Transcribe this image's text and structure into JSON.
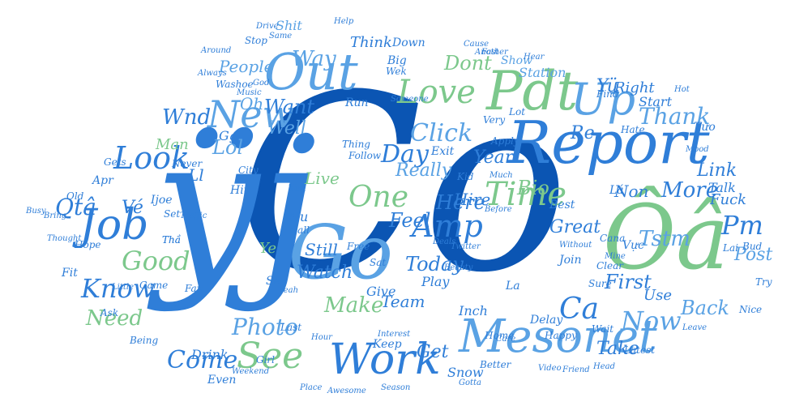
{
  "colors": {
    "background": "#ffffff",
    "navy": "#0b55b3",
    "blue": "#2f7ed8",
    "sky": "#5aa2e4",
    "green": "#7cc88c",
    "pale": "#b9d4ec",
    "palegreen": "#cde6cd"
  },
  "words": [
    {
      "text": "Co",
      "color": "navy"
    },
    {
      "text": "ÿj",
      "color": "blue"
    },
    {
      "text": "Go",
      "color": "sky"
    },
    {
      "text": "Ôâ",
      "color": "green"
    },
    {
      "text": "Report",
      "color": "blue"
    },
    {
      "text": "Out",
      "color": "sky"
    },
    {
      "text": "Pdt",
      "color": "green"
    },
    {
      "text": "Up",
      "color": "sky"
    },
    {
      "text": "Mesonet",
      "color": "sky"
    },
    {
      "text": "Work",
      "color": "blue"
    },
    {
      "text": "Job",
      "color": "blue"
    },
    {
      "text": "Love",
      "color": "green"
    },
    {
      "text": "See",
      "color": "green"
    },
    {
      "text": "Time",
      "color": "green"
    },
    {
      "text": "New",
      "color": "sky"
    },
    {
      "text": "Look",
      "color": "blue"
    },
    {
      "text": "Amp",
      "color": "blue"
    },
    {
      "text": "One",
      "color": "green"
    },
    {
      "text": "Click",
      "color": "sky"
    },
    {
      "text": "Pm",
      "color": "blue"
    },
    {
      "text": "Know",
      "color": "blue"
    },
    {
      "text": "Now",
      "color": "sky"
    },
    {
      "text": "Ca",
      "color": "blue"
    },
    {
      "text": "Good",
      "color": "green"
    },
    {
      "text": "Thank",
      "color": "sky"
    },
    {
      "text": "Come",
      "color": "blue"
    },
    {
      "text": "Need",
      "color": "green"
    },
    {
      "text": "Way",
      "color": "sky"
    },
    {
      "text": "Day",
      "color": "blue"
    },
    {
      "text": "Wnd",
      "color": "blue"
    },
    {
      "text": "Want",
      "color": "blue"
    },
    {
      "text": "People",
      "color": "sky"
    },
    {
      "text": "Dont",
      "color": "green"
    },
    {
      "text": "Lol",
      "color": "sky"
    },
    {
      "text": "Watch",
      "color": "blue"
    },
    {
      "text": "Today",
      "color": "blue"
    },
    {
      "text": "Make",
      "color": "green"
    },
    {
      "text": "Post",
      "color": "sky"
    },
    {
      "text": "Photo",
      "color": "sky"
    },
    {
      "text": "Take",
      "color": "blue"
    },
    {
      "text": "Back",
      "color": "sky"
    },
    {
      "text": "Get",
      "color": "blue"
    },
    {
      "text": "Feel",
      "color": "blue"
    },
    {
      "text": "Here",
      "color": "blue"
    },
    {
      "text": "Still",
      "color": "blue"
    },
    {
      "text": "Great",
      "color": "blue"
    },
    {
      "text": "Link",
      "color": "blue"
    },
    {
      "text": "More",
      "color": "blue"
    },
    {
      "text": "First",
      "color": "blue"
    },
    {
      "text": "Tstm",
      "color": "sky"
    },
    {
      "text": "Bio",
      "color": "green"
    },
    {
      "text": "Year",
      "color": "blue"
    },
    {
      "text": "Hire",
      "color": "blue"
    },
    {
      "text": "Really",
      "color": "sky"
    },
    {
      "text": "Live",
      "color": "green"
    },
    {
      "text": "Team",
      "color": "blue"
    },
    {
      "text": "Well",
      "color": "sky"
    },
    {
      "text": "Man",
      "color": "green"
    },
    {
      "text": "Oh",
      "color": "sky"
    },
    {
      "text": "Ye",
      "color": "green"
    },
    {
      "text": "Right",
      "color": "blue"
    },
    {
      "text": "Station",
      "color": "sky"
    },
    {
      "text": "Start",
      "color": "blue"
    },
    {
      "text": "Think",
      "color": "blue"
    },
    {
      "text": "Shit",
      "color": "sky"
    },
    {
      "text": "Show",
      "color": "sky"
    },
    {
      "text": "Use",
      "color": "blue"
    },
    {
      "text": "Non",
      "color": "blue"
    },
    {
      "text": "Re",
      "color": "blue"
    },
    {
      "text": "Talk",
      "color": "blue"
    },
    {
      "text": "Fuck",
      "color": "blue"
    },
    {
      "text": "Drink",
      "color": "blue"
    },
    {
      "text": "Keep",
      "color": "blue"
    },
    {
      "text": "Snow",
      "color": "blue"
    },
    {
      "text": "Play",
      "color": "blue"
    },
    {
      "text": "Give",
      "color": "blue"
    },
    {
      "text": "Nu",
      "color": "blue"
    },
    {
      "text": "Call",
      "color": "blue"
    },
    {
      "text": "Tell",
      "color": "blue"
    },
    {
      "text": "Hit",
      "color": "blue"
    },
    {
      "text": "City",
      "color": "blue"
    },
    {
      "text": "Never",
      "color": "blue"
    },
    {
      "text": "Old",
      "color": "blue"
    },
    {
      "text": "Apr",
      "color": "blue"
    },
    {
      "text": "Gets",
      "color": "blue"
    },
    {
      "text": "Stop",
      "color": "blue"
    },
    {
      "text": "Same",
      "color": "blue"
    },
    {
      "text": "Big",
      "color": "blue"
    },
    {
      "text": "Down",
      "color": "blue"
    },
    {
      "text": "Help",
      "color": "blue"
    },
    {
      "text": "Wek",
      "color": "blue"
    },
    {
      "text": "Best",
      "color": "blue"
    },
    {
      "text": "Last",
      "color": "blue"
    },
    {
      "text": "Better",
      "color": "blue"
    },
    {
      "text": "Find",
      "color": "blue"
    },
    {
      "text": "Hate",
      "color": "blue"
    },
    {
      "text": "Nice",
      "color": "blue"
    },
    {
      "text": "Try",
      "color": "blue"
    },
    {
      "text": "Fan",
      "color": "blue"
    },
    {
      "text": "Ask",
      "color": "blue"
    },
    {
      "text": "Even",
      "color": "blue"
    },
    {
      "text": "Girl",
      "color": "blue"
    },
    {
      "text": "Being",
      "color": "blue"
    },
    {
      "text": "Video",
      "color": "blue"
    },
    {
      "text": "Friend",
      "color": "blue"
    },
    {
      "text": "Head",
      "color": "blue"
    },
    {
      "text": "Latest",
      "color": "blue"
    },
    {
      "text": "Wait",
      "color": "blue"
    },
    {
      "text": "Leave",
      "color": "blue"
    },
    {
      "text": "Place",
      "color": "blue"
    },
    {
      "text": "Season",
      "color": "blue"
    },
    {
      "text": "Game",
      "color": "blue"
    },
    {
      "text": "Little",
      "color": "blue"
    },
    {
      "text": "Fit",
      "color": "blue"
    },
    {
      "text": "Hope",
      "color": "blue"
    },
    {
      "text": "Traffic",
      "color": "blue"
    },
    {
      "text": "Very",
      "color": "blue"
    },
    {
      "text": "Lot",
      "color": "blue"
    },
    {
      "text": "Apply",
      "color": "blue"
    },
    {
      "text": "Exit",
      "color": "blue"
    },
    {
      "text": "Follow",
      "color": "blue"
    },
    {
      "text": "Thing",
      "color": "blue"
    },
    {
      "text": "Free",
      "color": "blue"
    },
    {
      "text": "Without",
      "color": "blue"
    },
    {
      "text": "Join",
      "color": "blue"
    },
    {
      "text": "Clear",
      "color": "blue"
    },
    {
      "text": "Sure",
      "color": "blue"
    },
    {
      "text": "Inch",
      "color": "blue"
    },
    {
      "text": "Delay",
      "color": "blue"
    },
    {
      "text": "Happy",
      "color": "blue"
    },
    {
      "text": "Care",
      "color": "blue"
    },
    {
      "text": "Home",
      "color": "blue"
    },
    {
      "text": "Cana",
      "color": "blue"
    },
    {
      "text": "Mine",
      "color": "blue"
    },
    {
      "text": "Twitter",
      "color": "blue"
    },
    {
      "text": "Beauty",
      "color": "blue"
    },
    {
      "text": "Deals",
      "color": "blue"
    },
    {
      "text": "Kid",
      "color": "blue"
    },
    {
      "text": "Much",
      "color": "blue"
    },
    {
      "text": "Before",
      "color": "blue"
    },
    {
      "text": "Cause",
      "color": "blue"
    },
    {
      "text": "Another",
      "color": "blue"
    },
    {
      "text": "Drive",
      "color": "blue"
    },
    {
      "text": "Washoe",
      "color": "blue"
    },
    {
      "text": "Hear",
      "color": "blue"
    },
    {
      "text": "Run",
      "color": "blue"
    },
    {
      "text": "Someone",
      "color": "blue"
    },
    {
      "text": "Around",
      "color": "blue"
    },
    {
      "text": "Always",
      "color": "blue"
    },
    {
      "text": "Fast",
      "color": "blue"
    },
    {
      "text": "Music",
      "color": "blue"
    },
    {
      "text": "Gotta",
      "color": "blue"
    },
    {
      "text": "Awesome",
      "color": "blue"
    },
    {
      "text": "Weekend",
      "color": "blue"
    },
    {
      "text": "Interest",
      "color": "blue"
    },
    {
      "text": "Hour",
      "color": "blue"
    },
    {
      "text": "Yeah",
      "color": "blue"
    },
    {
      "text": "Sat",
      "color": "blue"
    },
    {
      "text": "Mood",
      "color": "blue"
    },
    {
      "text": "Hot",
      "color": "blue"
    },
    {
      "text": "God",
      "color": "blue"
    },
    {
      "text": "Thought",
      "color": "blue"
    },
    {
      "text": "Bring",
      "color": "blue"
    },
    {
      "text": "Busy",
      "color": "blue"
    },
    {
      "text": "Set",
      "color": "blue"
    },
    {
      "text": "Hard",
      "color": "blue"
    },
    {
      "text": "Bud",
      "color": "blue"
    },
    {
      "text": "Thầ",
      "color": "blue"
    },
    {
      "text": "Tưo",
      "color": "blue"
    },
    {
      "text": "Lai",
      "color": "blue"
    },
    {
      "text": "Qtâ",
      "color": "blue"
    },
    {
      "text": "Vé",
      "color": "blue"
    },
    {
      "text": "Ll",
      "color": "blue"
    },
    {
      "text": "Gg",
      "color": "blue"
    },
    {
      "text": "Ijoe",
      "color": "blue"
    },
    {
      "text": "La",
      "color": "blue"
    },
    {
      "text": "Se",
      "color": "blue"
    },
    {
      "text": "Yü",
      "color": "blue"
    },
    {
      "text": "Lá",
      "color": "blue"
    },
    {
      "text": "Vực",
      "color": "blue"
    },
    {
      "text": "Thầ",
      "color": "blue"
    }
  ]
}
